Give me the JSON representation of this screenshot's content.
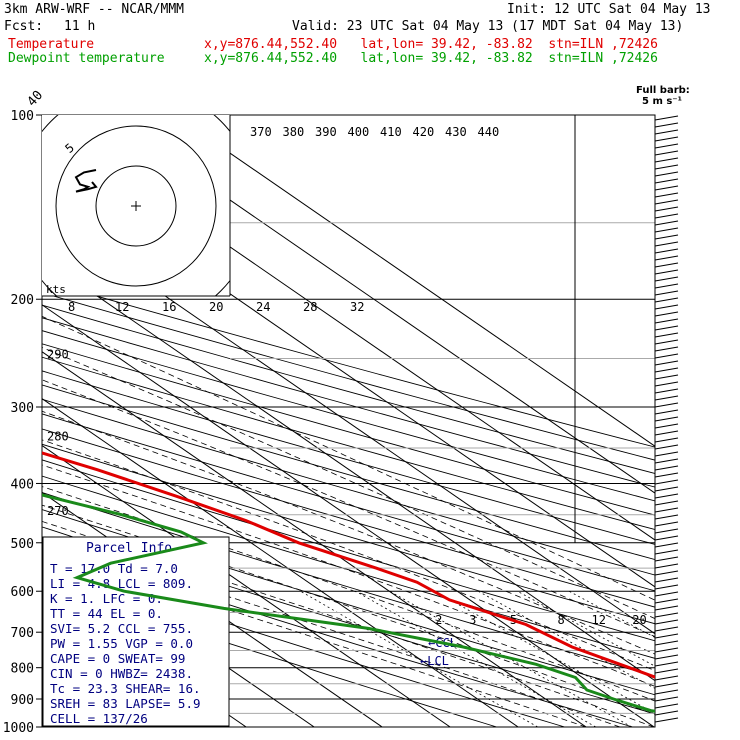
{
  "header": {
    "model": "3km ARW-WRF -- NCAR/MMM",
    "init": "Init: 12 UTC Sat 04 May 13",
    "fcst_label": "Fcst:",
    "fcst_value": "11 h",
    "valid": "Valid: 23 UTC Sat 04 May 13 (17 MDT Sat 04 May 13)",
    "temp_label": "Temperature",
    "dew_label": "Dewpoint temperature",
    "location": "x,y=876.44,552.40   lat,lon= 39.42, -83.82  stn=ILN ,72426"
  },
  "colors": {
    "temperature": "#e00000",
    "dewpoint": "#1a8a1a",
    "parcel_text": "#000080",
    "grid": "#000000"
  },
  "chart_data": {
    "type": "skew-t",
    "y_axis": "Pressure (hPa)",
    "y_scale": "log",
    "pressure_ticks": [
      100,
      200,
      300,
      400,
      500,
      600,
      700,
      800,
      900,
      1000
    ],
    "temp_ticks": [
      -80,
      -70,
      -60,
      -50,
      -40,
      -30,
      -20,
      -10,
      0,
      10,
      20,
      30,
      40
    ],
    "theta_labels": [
      {
        "label": "370",
        "p": 100,
        "t": -86
      },
      {
        "label": "380",
        "p": 100,
        "t": -83
      },
      {
        "label": "390",
        "p": 100,
        "t": -80
      },
      {
        "label": "400",
        "p": 100,
        "t": -77
      },
      {
        "label": "410",
        "p": 100,
        "t": -74
      },
      {
        "label": "420",
        "p": 100,
        "t": -71
      },
      {
        "label": "430",
        "p": 100,
        "t": -68
      },
      {
        "label": "440",
        "p": 100,
        "t": -65
      },
      {
        "label": "290",
        "p": 250,
        "t": -82
      },
      {
        "label": "280",
        "p": 340,
        "t": -80
      },
      {
        "label": "270",
        "p": 450,
        "t": -79
      }
    ],
    "mixing_ratio_labels": [
      {
        "label": "2",
        "p": 700,
        "t": -12
      },
      {
        "label": "3",
        "p": 700,
        "t": -7
      },
      {
        "label": "5",
        "p": 700,
        "t": -1
      },
      {
        "label": "8",
        "p": 700,
        "t": 6
      },
      {
        "label": "12",
        "p": 700,
        "t": 11
      },
      {
        "label": "20",
        "p": 700,
        "t": 17
      }
    ],
    "temperature": [
      {
        "p": 100,
        "t": -56
      },
      {
        "p": 115,
        "t": -57
      },
      {
        "p": 130,
        "t": -58
      },
      {
        "p": 150,
        "t": -59
      },
      {
        "p": 170,
        "t": -61
      },
      {
        "p": 190,
        "t": -63
      },
      {
        "p": 210,
        "t": -62
      },
      {
        "p": 240,
        "t": -56
      },
      {
        "p": 270,
        "t": -50
      },
      {
        "p": 300,
        "t": -44
      },
      {
        "p": 340,
        "t": -35
      },
      {
        "p": 380,
        "t": -27
      },
      {
        "p": 420,
        "t": -21
      },
      {
        "p": 460,
        "t": -16
      },
      {
        "p": 500,
        "t": -13
      },
      {
        "p": 550,
        "t": -7
      },
      {
        "p": 580,
        "t": -4
      },
      {
        "p": 620,
        "t": -3
      },
      {
        "p": 680,
        "t": 3
      },
      {
        "p": 740,
        "t": 5
      },
      {
        "p": 800,
        "t": 9
      },
      {
        "p": 850,
        "t": 12
      },
      {
        "p": 900,
        "t": 15
      },
      {
        "p": 925,
        "t": 20
      },
      {
        "p": 950,
        "t": 22
      },
      {
        "p": 965,
        "t": 23
      }
    ],
    "dewpoint": [
      {
        "p": 100,
        "t": -90
      },
      {
        "p": 120,
        "t": -91
      },
      {
        "p": 140,
        "t": -93
      },
      {
        "p": 160,
        "t": -95
      },
      {
        "p": 180,
        "t": -96
      },
      {
        "p": 200,
        "t": -94
      },
      {
        "p": 220,
        "t": -90
      },
      {
        "p": 250,
        "t": -84
      },
      {
        "p": 290,
        "t": -75
      },
      {
        "p": 330,
        "t": -63
      },
      {
        "p": 380,
        "t": -50
      },
      {
        "p": 420,
        "t": -40
      },
      {
        "p": 450,
        "t": -33
      },
      {
        "p": 480,
        "t": -28
      },
      {
        "p": 500,
        "t": -27
      },
      {
        "p": 540,
        "t": -45
      },
      {
        "p": 570,
        "t": -53
      },
      {
        "p": 600,
        "t": -49
      },
      {
        "p": 640,
        "t": -38
      },
      {
        "p": 690,
        "t": -21
      },
      {
        "p": 740,
        "t": -11
      },
      {
        "p": 790,
        "t": -4
      },
      {
        "p": 830,
        "t": -1
      },
      {
        "p": 870,
        "t": -2
      },
      {
        "p": 900,
        "t": 0
      },
      {
        "p": 940,
        "t": 3
      },
      {
        "p": 960,
        "t": 7
      }
    ],
    "hodograph": {
      "rings_kts": [
        10,
        20,
        30
      ],
      "ring_label": "5",
      "speed_label": "kts",
      "speed_ticks": [
        "8",
        "12",
        "16",
        "20",
        "24",
        "28",
        "32"
      ],
      "trace": [
        [
          0,
          0
        ],
        [
          -3,
          1
        ],
        [
          -5,
          3
        ],
        [
          -4,
          6
        ],
        [
          -2,
          7
        ],
        [
          -3,
          8
        ],
        [
          -5,
          9
        ],
        [
          -2,
          8
        ],
        [
          0,
          7
        ],
        [
          -1,
          5
        ]
      ]
    },
    "wind_unit": "Full barb:\n5 m s⁻¹",
    "lcl_markers": [
      "←CCL",
      "←LCL"
    ]
  },
  "parcel_info": {
    "title": "Parcel Info",
    "rows": [
      "T  =   17.0 Td  =  7.0",
      "LI =   4.8  LCL = 809.",
      "K  =   1.   LFC =  0. ",
      "TT =   44   EL  =  0. ",
      "SVI=   5.2  CCL = 755.",
      "PW =   1.55 VGP =  0.0",
      "CAPE =   0  SWEAT= 99 ",
      "CIN  =   0  HWBZ= 2438.",
      "Tc  = 23.3  SHEAR= 16.",
      "SREH =  83  LAPSE= 5.9",
      "CELL = 137/26"
    ]
  }
}
